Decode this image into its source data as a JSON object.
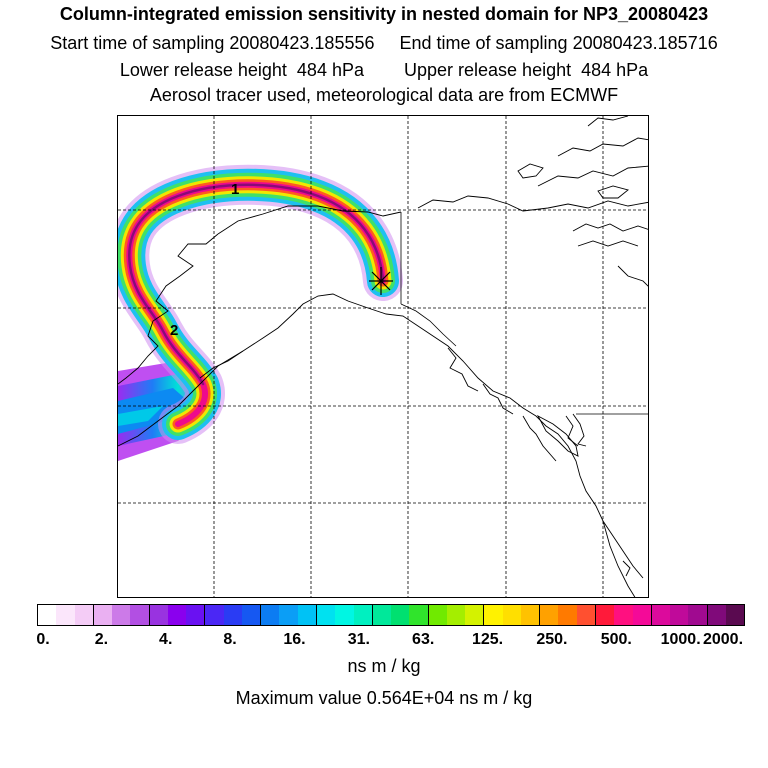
{
  "header": {
    "title": "Column-integrated emission sensitivity in nested domain for NP3_20080423",
    "line2": "Start time of sampling 20080423.185556     End time of sampling 20080423.185716",
    "line3": "Lower release height  484 hPa        Upper release height  484 hPa",
    "line4": "Aerosol tracer used, meteorological data are from ECMWF"
  },
  "map": {
    "labels": [
      {
        "name": "plume-label-1",
        "text": "1"
      },
      {
        "name": "plume-label-2",
        "text": "2"
      }
    ],
    "release_marker": "asterisk-marker"
  },
  "colorbar": {
    "ticks": [
      "0.",
      "2.",
      "4.",
      "8.",
      "16.",
      "31.",
      "63.",
      "125.",
      "250.",
      "500.",
      "1000.",
      "2000."
    ],
    "colors": [
      "#ffffff",
      "#fbe6fb",
      "#f4ccf6",
      "#eab0f2",
      "#cc7ae8",
      "#b24fe3",
      "#9933e0",
      "#8a00ee",
      "#6a11f2",
      "#4b27f5",
      "#2a3cf4",
      "#1658f2",
      "#0c7cf2",
      "#0b9ef6",
      "#00c2f5",
      "#00e1f0",
      "#00f6e3",
      "#00f0c0",
      "#00e89a",
      "#00e070",
      "#30e42c",
      "#70ea00",
      "#a4ee00",
      "#d4f200",
      "#fff200",
      "#ffdf00",
      "#ffc200",
      "#ffa100",
      "#ff7a00",
      "#ff5030",
      "#ff1a3a",
      "#ff1080",
      "#f40a98",
      "#dc0a9c",
      "#c00a9a",
      "#a00a90",
      "#800a7a",
      "#5a0a50"
    ],
    "units": "ns m / kg",
    "maximum": "Maximum value  0.564E+04 ns m / kg"
  }
}
